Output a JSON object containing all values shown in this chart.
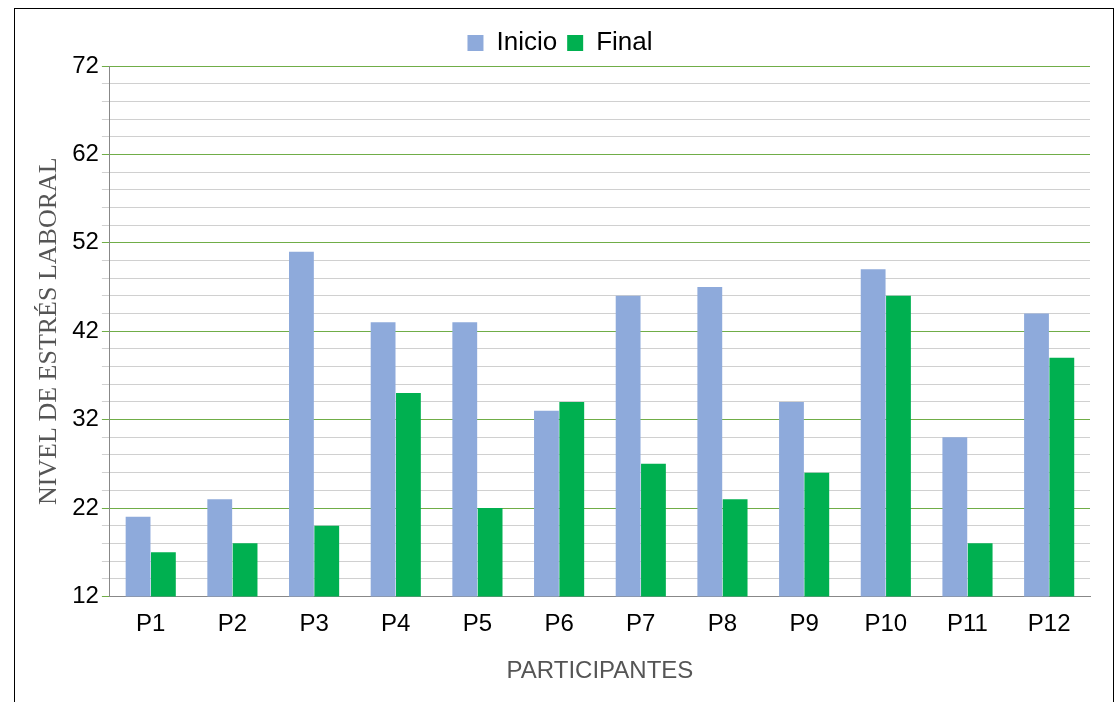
{
  "chart_data": {
    "type": "bar",
    "xlabel": "PARTICIPANTES",
    "ylabel": "NIVEL DE ESTRÉS LABORAL",
    "categories": [
      "P1",
      "P2",
      "P3",
      "P4",
      "P5",
      "P6",
      "P7",
      "P8",
      "P9",
      "P10",
      "P11",
      "P12"
    ],
    "series": [
      {
        "name": "Inicio",
        "color": "#8eaadb",
        "values": [
          21,
          23,
          51,
          43,
          43,
          33,
          46,
          47,
          34,
          49,
          30,
          44
        ]
      },
      {
        "name": "Final",
        "color": "#00b050",
        "values": [
          17,
          18,
          20,
          35,
          22,
          34,
          27,
          23,
          26,
          46,
          18,
          39
        ]
      }
    ],
    "ylim": [
      12,
      72
    ],
    "yticks": [
      12,
      {
        "value": 14,
        "label": null
      },
      {
        "value": 16,
        "label": null
      },
      {
        "value": 18,
        "label": null
      },
      {
        "value": 20,
        "label": null
      },
      22,
      {
        "value": 24,
        "label": null
      },
      {
        "value": 26,
        "label": null
      },
      {
        "value": 28,
        "label": null
      },
      {
        "value": 30,
        "label": null
      },
      32,
      {
        "value": 34,
        "label": null
      },
      {
        "value": 36,
        "label": null
      },
      {
        "value": 38,
        "label": null
      },
      {
        "value": 40,
        "label": null
      },
      42,
      {
        "value": 44,
        "label": null
      },
      {
        "value": 46,
        "label": null
      },
      {
        "value": 48,
        "label": null
      },
      {
        "value": 50,
        "label": null
      },
      52,
      {
        "value": 54,
        "label": null
      },
      {
        "value": 56,
        "label": null
      },
      {
        "value": 58,
        "label": null
      },
      {
        "value": 60,
        "label": null
      },
      62,
      {
        "value": 64,
        "label": null
      },
      {
        "value": 66,
        "label": null
      },
      {
        "value": 68,
        "label": null
      },
      {
        "value": 70,
        "label": null
      },
      72
    ],
    "grid": "y",
    "legend": "top"
  }
}
